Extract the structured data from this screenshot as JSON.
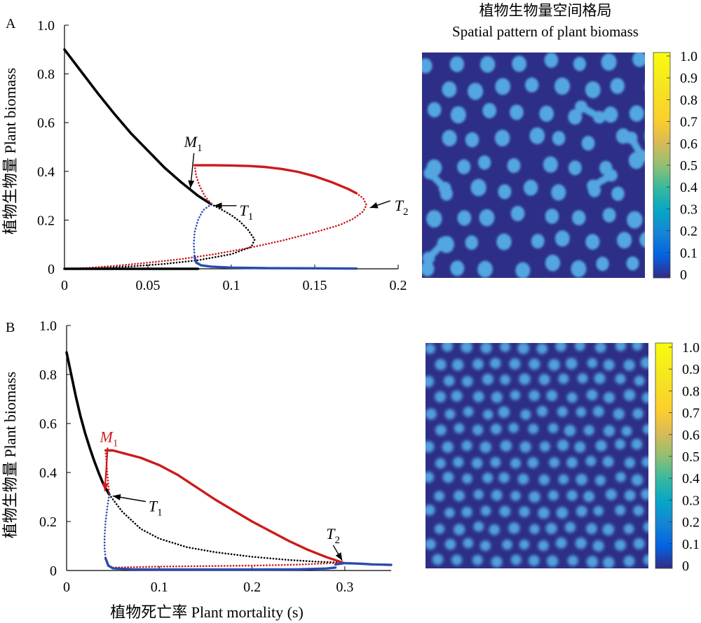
{
  "figure_title": {
    "line1": "植物生物量空间格局",
    "line2": "Spatial pattern of plant biomass"
  },
  "panels": [
    {
      "label": "A"
    },
    {
      "label": "B"
    }
  ],
  "colors": {
    "stable_uniform": "#000000",
    "unstable_uniform": "#000000",
    "stable_spot_upper": "#cc1a1a",
    "unstable_spot": "#cc1a1a",
    "stable_lower": "#2a4bb0",
    "unstable_lower": "#2a4bb0",
    "map_background": "#2d2e87",
    "map_spot": "#52a6e0"
  },
  "chart_data": [
    {
      "type": "line",
      "panel": "A",
      "xlabel": "",
      "ylabel": "植物生物量 Plant biomass",
      "xlim": [
        0,
        0.2
      ],
      "ylim": [
        0,
        1.0
      ],
      "xticks": [
        "0",
        "0.05",
        "0.1",
        "0.15",
        "0.2"
      ],
      "yticks": [
        "0",
        "0.2",
        "0.4",
        "0.6",
        "0.8",
        "1.0"
      ],
      "annotations": [
        {
          "label": "M",
          "sub": "1",
          "x": 0.078,
          "y": 0.42
        },
        {
          "label": "T",
          "sub": "1",
          "x": 0.088,
          "y": 0.265
        },
        {
          "label": "T",
          "sub": "2",
          "x": 0.181,
          "y": 0.262
        }
      ],
      "series": [
        {
          "style": "solid",
          "color_key": "stable_uniform",
          "points": [
            [
              0.0,
              0.9
            ],
            [
              0.01,
              0.81
            ],
            [
              0.02,
              0.72
            ],
            [
              0.03,
              0.635
            ],
            [
              0.04,
              0.555
            ],
            [
              0.05,
              0.485
            ],
            [
              0.06,
              0.415
            ],
            [
              0.07,
              0.355
            ],
            [
              0.08,
              0.3
            ],
            [
              0.088,
              0.265
            ]
          ]
        },
        {
          "style": "dotted",
          "color_key": "unstable_uniform",
          "points": [
            [
              0.088,
              0.265
            ],
            [
              0.095,
              0.24
            ],
            [
              0.1,
              0.22
            ],
            [
              0.105,
              0.195
            ],
            [
              0.11,
              0.16
            ],
            [
              0.114,
              0.12
            ],
            [
              0.112,
              0.09
            ],
            [
              0.1,
              0.06
            ],
            [
              0.08,
              0.035
            ],
            [
              0.06,
              0.02
            ],
            [
              0.04,
              0.01
            ],
            [
              0.02,
              0.004
            ],
            [
              0.0,
              0.0
            ]
          ]
        },
        {
          "style": "solid",
          "color_key": "stable_spot_upper",
          "points": [
            [
              0.078,
              0.425
            ],
            [
              0.09,
              0.425
            ],
            [
              0.1,
              0.424
            ],
            [
              0.11,
              0.422
            ],
            [
              0.12,
              0.418
            ],
            [
              0.13,
              0.41
            ],
            [
              0.14,
              0.398
            ],
            [
              0.15,
              0.38
            ],
            [
              0.16,
              0.356
            ],
            [
              0.17,
              0.328
            ],
            [
              0.175,
              0.31
            ]
          ]
        },
        {
          "style": "dotted",
          "color_key": "unstable_spot",
          "points": [
            [
              0.078,
              0.425
            ],
            [
              0.079,
              0.38
            ],
            [
              0.081,
              0.34
            ],
            [
              0.084,
              0.3
            ],
            [
              0.088,
              0.265
            ]
          ]
        },
        {
          "style": "dotted",
          "color_key": "unstable_spot",
          "points": [
            [
              0.175,
              0.31
            ],
            [
              0.179,
              0.29
            ],
            [
              0.181,
              0.262
            ],
            [
              0.179,
              0.235
            ],
            [
              0.173,
              0.205
            ],
            [
              0.165,
              0.18
            ],
            [
              0.15,
              0.15
            ],
            [
              0.13,
              0.115
            ],
            [
              0.11,
              0.085
            ],
            [
              0.09,
              0.06
            ],
            [
              0.07,
              0.04
            ],
            [
              0.05,
              0.025
            ],
            [
              0.03,
              0.012
            ],
            [
              0.015,
              0.004
            ],
            [
              0.0,
              0.0
            ]
          ]
        },
        {
          "style": "dotted",
          "color_key": "unstable_lower",
          "points": [
            [
              0.088,
              0.265
            ],
            [
              0.083,
              0.24
            ],
            [
              0.08,
              0.2
            ],
            [
              0.078,
              0.15
            ],
            [
              0.0775,
              0.1
            ],
            [
              0.078,
              0.05
            ]
          ]
        },
        {
          "style": "solid",
          "color_key": "stable_lower",
          "points": [
            [
              0.078,
              0.05
            ],
            [
              0.079,
              0.025
            ],
            [
              0.082,
              0.014
            ],
            [
              0.088,
              0.009
            ],
            [
              0.1,
              0.005
            ],
            [
              0.12,
              0.003
            ],
            [
              0.15,
              0.002
            ],
            [
              0.175,
              0.001
            ]
          ]
        },
        {
          "style": "solid",
          "color_key": "stable_uniform",
          "points": [
            [
              0.0,
              0.0
            ],
            [
              0.04,
              0.0
            ],
            [
              0.08,
              0.0
            ]
          ]
        }
      ]
    },
    {
      "type": "line",
      "panel": "B",
      "xlabel": "植物死亡率 Plant mortality (s)",
      "ylabel": "植物生物量 Plant biomass",
      "xlim": [
        0,
        0.35
      ],
      "ylim": [
        0,
        1.0
      ],
      "xticks": [
        "0",
        "0.1",
        "0.2",
        "0.3"
      ],
      "yticks": [
        "0",
        "0.2",
        "0.4",
        "0.6",
        "0.8",
        "1.0"
      ],
      "annotations": [
        {
          "label": "M",
          "sub": "1",
          "x": 0.042,
          "y": 0.49
        },
        {
          "label": "T",
          "sub": "1",
          "x": 0.046,
          "y": 0.31
        },
        {
          "label": "T",
          "sub": "2",
          "x": 0.298,
          "y": 0.032
        }
      ],
      "series": [
        {
          "style": "solid",
          "color_key": "stable_uniform",
          "points": [
            [
              0.0,
              0.89
            ],
            [
              0.005,
              0.8
            ],
            [
              0.01,
              0.71
            ],
            [
              0.015,
              0.63
            ],
            [
              0.02,
              0.56
            ],
            [
              0.025,
              0.5
            ],
            [
              0.03,
              0.445
            ],
            [
              0.035,
              0.395
            ],
            [
              0.04,
              0.35
            ],
            [
              0.046,
              0.31
            ]
          ]
        },
        {
          "style": "dotted",
          "color_key": "unstable_uniform",
          "points": [
            [
              0.046,
              0.31
            ],
            [
              0.06,
              0.24
            ],
            [
              0.08,
              0.17
            ],
            [
              0.1,
              0.13
            ],
            [
              0.13,
              0.095
            ],
            [
              0.16,
              0.075
            ],
            [
              0.2,
              0.056
            ],
            [
              0.24,
              0.043
            ],
            [
              0.27,
              0.036
            ],
            [
              0.298,
              0.032
            ]
          ]
        },
        {
          "style": "solid",
          "color_key": "stable_spot_upper",
          "points": [
            [
              0.042,
              0.49
            ],
            [
              0.05,
              0.49
            ],
            [
              0.06,
              0.48
            ],
            [
              0.08,
              0.46
            ],
            [
              0.1,
              0.43
            ],
            [
              0.12,
              0.39
            ],
            [
              0.14,
              0.34
            ],
            [
              0.16,
              0.29
            ],
            [
              0.18,
              0.245
            ],
            [
              0.2,
              0.2
            ],
            [
              0.22,
              0.16
            ],
            [
              0.24,
              0.12
            ],
            [
              0.26,
              0.085
            ],
            [
              0.28,
              0.055
            ],
            [
              0.298,
              0.032
            ]
          ]
        },
        {
          "style": "dotted",
          "color_key": "unstable_spot",
          "points": [
            [
              0.042,
              0.49
            ],
            [
              0.043,
              0.44
            ],
            [
              0.044,
              0.39
            ],
            [
              0.045,
              0.35
            ],
            [
              0.046,
              0.31
            ]
          ]
        },
        {
          "style": "dotted",
          "color_key": "unstable_spot",
          "points": [
            [
              0.05,
              0.012
            ],
            [
              0.1,
              0.016
            ],
            [
              0.15,
              0.018
            ],
            [
              0.2,
              0.02
            ],
            [
              0.25,
              0.024
            ],
            [
              0.298,
              0.032
            ]
          ]
        },
        {
          "style": "dotted",
          "color_key": "unstable_lower",
          "points": [
            [
              0.046,
              0.31
            ],
            [
              0.044,
              0.26
            ],
            [
              0.042,
              0.2
            ],
            [
              0.041,
              0.14
            ],
            [
              0.041,
              0.09
            ],
            [
              0.042,
              0.05
            ]
          ]
        },
        {
          "style": "solid",
          "color_key": "stable_lower",
          "points": [
            [
              0.042,
              0.05
            ],
            [
              0.045,
              0.02
            ],
            [
              0.05,
              0.009
            ],
            [
              0.07,
              0.005
            ],
            [
              0.1,
              0.004
            ],
            [
              0.15,
              0.004
            ],
            [
              0.2,
              0.004
            ],
            [
              0.25,
              0.005
            ],
            [
              0.28,
              0.008
            ],
            [
              0.29,
              0.012
            ]
          ]
        },
        {
          "style": "solid",
          "color_key": "stable_lower",
          "points": [
            [
              0.29,
              0.025
            ],
            [
              0.3,
              0.03
            ],
            [
              0.31,
              0.029
            ],
            [
              0.32,
              0.027
            ],
            [
              0.33,
              0.025
            ],
            [
              0.34,
              0.024
            ],
            [
              0.35,
              0.023
            ]
          ]
        }
      ]
    },
    {
      "type": "heatmap",
      "panel": "A-map",
      "colorbar": {
        "range": [
          0,
          1.0
        ],
        "ticks": [
          "0",
          "0.1",
          "0.2",
          "0.3",
          "0.4",
          "0.5",
          "0.6",
          "0.7",
          "0.8",
          "0.9",
          "1.0"
        ]
      },
      "pattern": "spots",
      "background_value": 0.1,
      "spot_value": 0.45
    },
    {
      "type": "heatmap",
      "panel": "B-map",
      "colorbar": {
        "range": [
          0,
          1.0
        ],
        "ticks": [
          "0",
          "0.1",
          "0.2",
          "0.3",
          "0.4",
          "0.5",
          "0.6",
          "0.7",
          "0.8",
          "0.9",
          "1.0"
        ]
      },
      "pattern": "spots",
      "background_value": 0.1,
      "spot_value": 0.4
    }
  ]
}
